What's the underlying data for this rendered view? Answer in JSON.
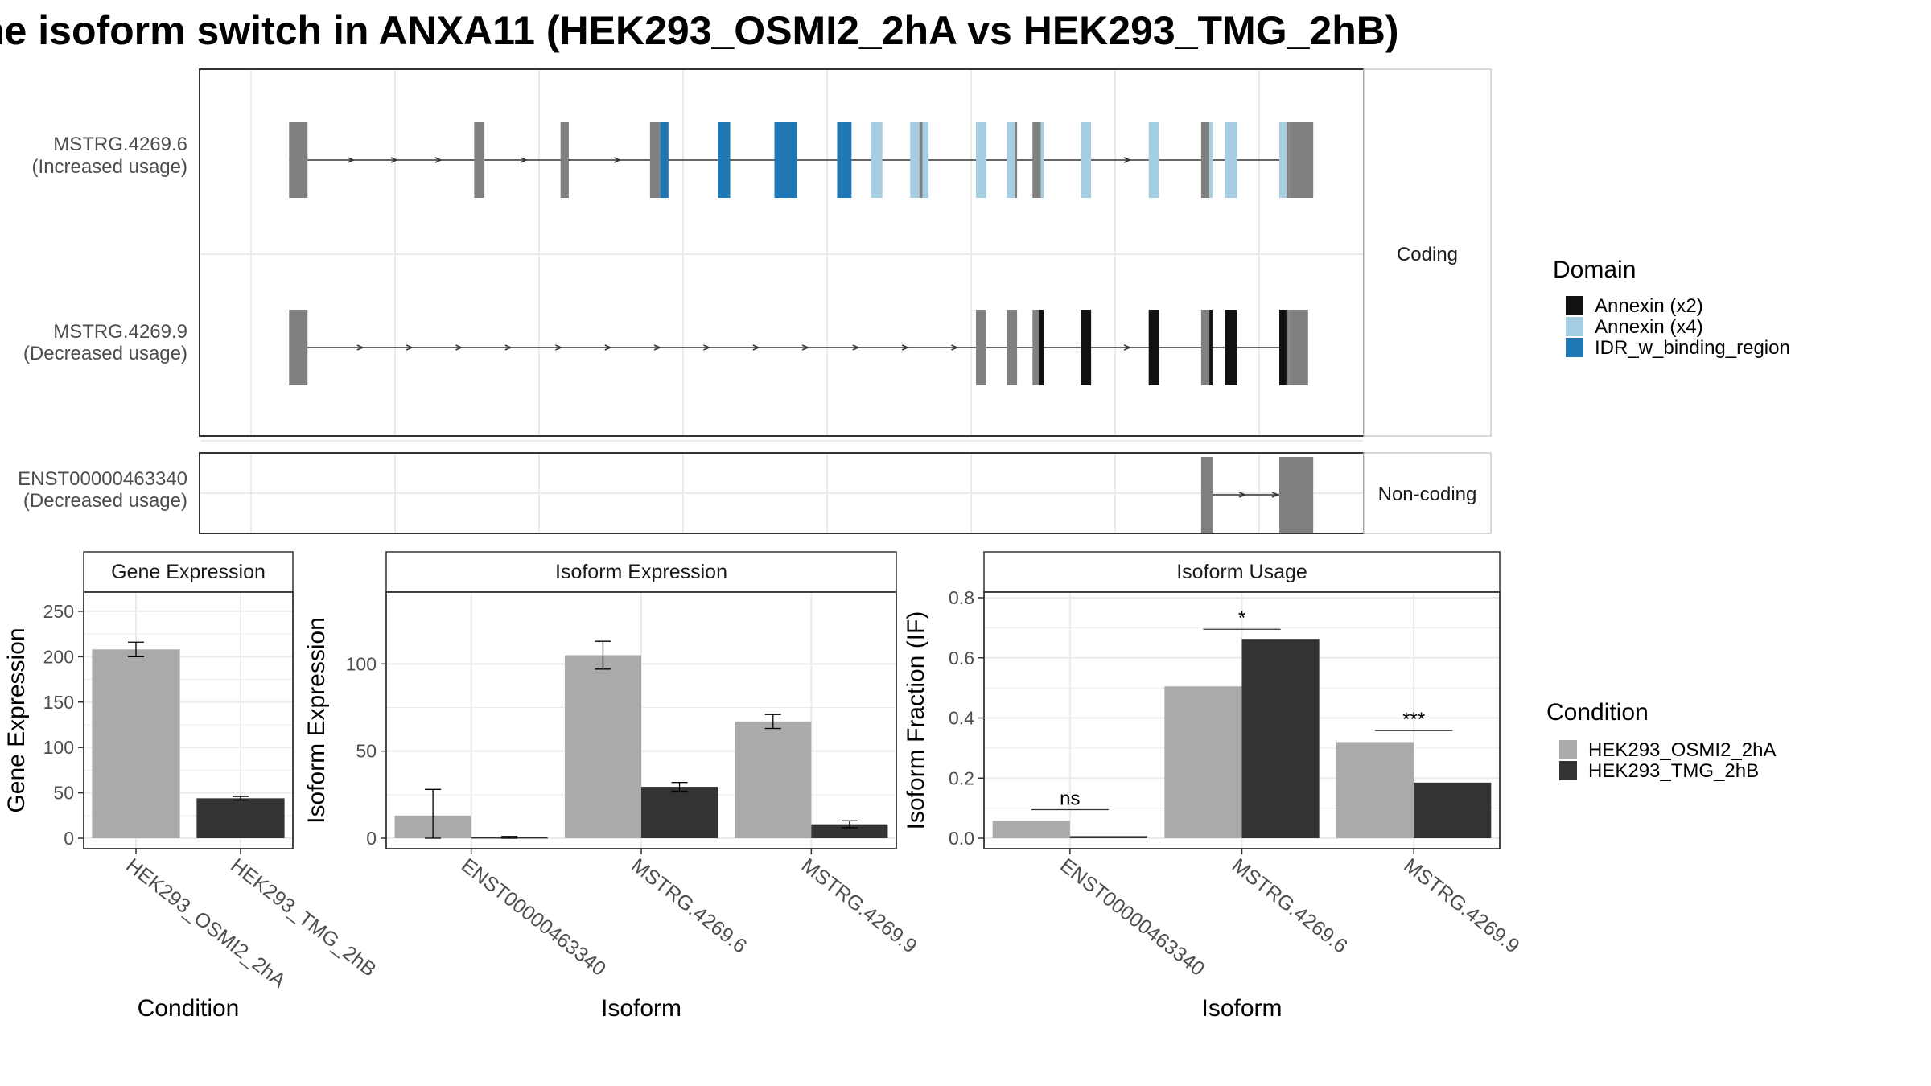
{
  "title": "ne isoform switch in ANXA11 (HEK293_OSMI2_2hA vs HEK293_TMG_2hB)",
  "colors": {
    "exon_grey": "#808080",
    "annexin_x2": "#111111",
    "annexin_x4": "#a6cee3",
    "idr": "#1f78b4",
    "cond_a": "#aaaaaa",
    "cond_b": "#333333",
    "grid": "#ebebeb",
    "strip_bg": "#ffffff",
    "panel_border": "#333333"
  },
  "structure": {
    "x_domain": [
      0,
      1000
    ],
    "strip_coding": "Coding",
    "strip_noncoding": "Non-coding",
    "transcripts": [
      {
        "id": "MSTRG.4269.6",
        "usage": "(Increased usage)",
        "group": "coding",
        "line": [
          37,
          1000
        ],
        "arrows": [
          98,
          140,
          183,
          266,
          308,
          357,
          853,
          881
        ],
        "exons": [
          {
            "s": 37,
            "e": 55,
            "c": "grey",
            "k": "utr"
          },
          {
            "s": 217,
            "e": 227,
            "c": "grey",
            "k": "utr"
          },
          {
            "s": 301,
            "e": 309,
            "c": "grey",
            "k": "utr"
          },
          {
            "s": 388,
            "e": 392,
            "c": "grey",
            "k": "utr"
          },
          {
            "s": 392,
            "e": 398,
            "c": "grey",
            "k": "cds"
          },
          {
            "s": 398,
            "e": 406,
            "c": "idr",
            "k": "cds"
          },
          {
            "s": 454,
            "e": 466,
            "c": "idr",
            "k": "cds"
          },
          {
            "s": 509,
            "e": 531,
            "c": "idr",
            "k": "cds"
          },
          {
            "s": 570,
            "e": 584,
            "c": "idr",
            "k": "cds"
          },
          {
            "s": 603,
            "e": 614,
            "c": "x4",
            "k": "cds"
          },
          {
            "s": 641,
            "e": 650,
            "c": "x4",
            "k": "cds"
          },
          {
            "s": 650,
            "e": 653,
            "c": "grey",
            "k": "cds"
          },
          {
            "s": 653,
            "e": 659,
            "c": "x4",
            "k": "cds"
          },
          {
            "s": 705,
            "e": 715,
            "c": "x4",
            "k": "cds"
          },
          {
            "s": 735,
            "e": 743,
            "c": "x4",
            "k": "cds"
          },
          {
            "s": 743,
            "e": 745,
            "c": "grey",
            "k": "cds"
          },
          {
            "s": 760,
            "e": 768,
            "c": "grey",
            "k": "cds"
          },
          {
            "s": 768,
            "e": 771,
            "c": "x4",
            "k": "cds"
          },
          {
            "s": 807,
            "e": 817,
            "c": "x4",
            "k": "cds"
          },
          {
            "s": 873,
            "e": 883,
            "c": "x4",
            "k": "cds"
          },
          {
            "s": 924,
            "e": 932,
            "c": "grey",
            "k": "cds"
          },
          {
            "s": 932,
            "e": 935,
            "c": "x4",
            "k": "cds"
          },
          {
            "s": 947,
            "e": 959,
            "c": "x4",
            "k": "cds"
          },
          {
            "s": 1000,
            "e": 1007,
            "c": "x4",
            "k": "cds"
          },
          {
            "s": 1007,
            "e": 1010,
            "c": "grey",
            "k": "cds"
          },
          {
            "s": 1010,
            "e": 1033,
            "c": "grey",
            "k": "utr"
          }
        ]
      },
      {
        "id": "MSTRG.4269.9",
        "usage": "(Decreased usage)",
        "group": "coding",
        "line": [
          37,
          1000
        ],
        "arrows": [
          107,
          155,
          203,
          251,
          300,
          348,
          396,
          444,
          492,
          540,
          589,
          637,
          685,
          853,
          881
        ],
        "exons": [
          {
            "s": 37,
            "e": 55,
            "c": "grey",
            "k": "utr"
          },
          {
            "s": 705,
            "e": 715,
            "c": "grey",
            "k": "utr"
          },
          {
            "s": 735,
            "e": 745,
            "c": "grey",
            "k": "utr"
          },
          {
            "s": 760,
            "e": 766,
            "c": "grey",
            "k": "utr"
          },
          {
            "s": 766,
            "e": 771,
            "c": "x2",
            "k": "cds"
          },
          {
            "s": 807,
            "e": 817,
            "c": "x2",
            "k": "cds"
          },
          {
            "s": 873,
            "e": 883,
            "c": "x2",
            "k": "cds"
          },
          {
            "s": 924,
            "e": 932,
            "c": "grey",
            "k": "cds"
          },
          {
            "s": 932,
            "e": 935,
            "c": "x2",
            "k": "cds"
          },
          {
            "s": 947,
            "e": 959,
            "c": "x2",
            "k": "cds"
          },
          {
            "s": 1000,
            "e": 1007,
            "c": "x2",
            "k": "cds"
          },
          {
            "s": 1007,
            "e": 1010,
            "c": "grey",
            "k": "cds"
          },
          {
            "s": 1010,
            "e": 1028,
            "c": "grey",
            "k": "utr"
          }
        ]
      },
      {
        "id": "ENST00000463340",
        "usage": "(Decreased usage)",
        "group": "noncoding",
        "line": [
          935,
          1000
        ],
        "arrows": [
          965,
          997
        ],
        "exons": [
          {
            "s": 924,
            "e": 935,
            "c": "grey",
            "k": "cds"
          },
          {
            "s": 1000,
            "e": 1033,
            "c": "grey",
            "k": "cds"
          }
        ]
      }
    ]
  },
  "legends": {
    "domain_title": "Domain",
    "domain_items": [
      {
        "label": "Annexin (x2)",
        "color": "#111111"
      },
      {
        "label": "Annexin (x4)",
        "color": "#a6cee3"
      },
      {
        "label": "IDR_w_binding_region",
        "color": "#1f78b4"
      }
    ],
    "condition_title": "Condition",
    "condition_items": [
      {
        "label": "HEK293_OSMI2_2hA",
        "color": "#aaaaaa"
      },
      {
        "label": "HEK293_TMG_2hB",
        "color": "#333333"
      }
    ]
  },
  "chart_data": [
    {
      "type": "bar",
      "title": "Gene Expression",
      "xlabel": "Condition",
      "ylabel": "Gene Expression",
      "categories": [
        "HEK293_OSMI2_2hA",
        "HEK293_TMG_2hB"
      ],
      "values": [
        208,
        44
      ],
      "errors": [
        8,
        2
      ],
      "ylim": [
        0,
        265
      ],
      "yticks": [
        0,
        50,
        100,
        150,
        200,
        250
      ],
      "ytick_labels": [
        "0",
        "50",
        "100",
        "150",
        "200",
        "250"
      ]
    },
    {
      "type": "bar",
      "title": "Isoform Expression",
      "xlabel": "Isoform",
      "ylabel": "Isoform Expression",
      "categories": [
        "ENST00000463340",
        "MSTRG.4269.6",
        "MSTRG.4269.9"
      ],
      "series": [
        {
          "name": "HEK293_OSMI2_2hA",
          "values": [
            13,
            105,
            67
          ],
          "errors": [
            15,
            8,
            4
          ]
        },
        {
          "name": "HEK293_TMG_2hB",
          "values": [
            0.5,
            29.5,
            8
          ],
          "errors": [
            0.5,
            2.5,
            2
          ]
        }
      ],
      "ylim": [
        0,
        138
      ],
      "yticks": [
        0,
        50,
        100
      ],
      "ytick_labels": [
        "0",
        "50",
        "100"
      ]
    },
    {
      "type": "bar",
      "title": "Isoform Usage",
      "xlabel": "Isoform",
      "ylabel": "Isoform Fraction (IF)",
      "categories": [
        "ENST00000463340",
        "MSTRG.4269.6",
        "MSTRG.4269.9"
      ],
      "series": [
        {
          "name": "HEK293_OSMI2_2hA",
          "values": [
            0.058,
            0.505,
            0.32
          ]
        },
        {
          "name": "HEK293_TMG_2hB",
          "values": [
            0.007,
            0.663,
            0.185
          ]
        }
      ],
      "significance": [
        "ns",
        "*",
        "***"
      ],
      "significance_y": [
        0.095,
        0.695,
        0.358
      ],
      "ylim": [
        0,
        0.8
      ],
      "yticks": [
        0,
        0.2,
        0.4,
        0.6,
        0.8
      ],
      "ytick_labels": [
        "0.0",
        "0.2",
        "0.4",
        "0.6",
        "0.8"
      ]
    }
  ]
}
